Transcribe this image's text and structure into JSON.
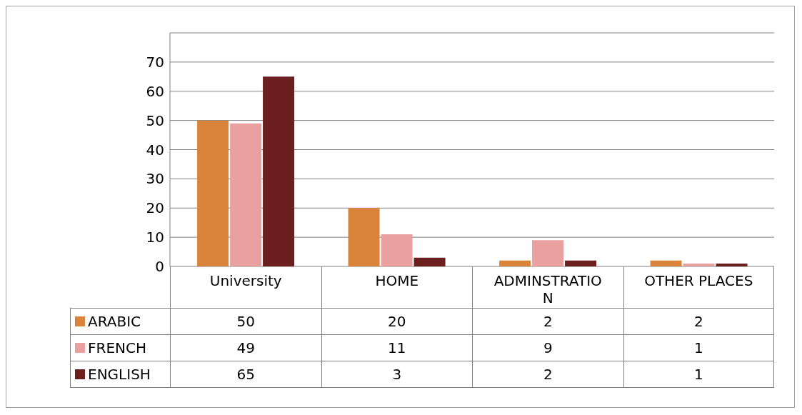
{
  "chart_data": {
    "type": "bar",
    "categories": [
      "University",
      "HOME",
      "ADMINSTRATIO N",
      "OTHER PLACES"
    ],
    "series": [
      {
        "name": "ARABIC",
        "color": "#d9843a",
        "values": [
          50,
          20,
          2,
          2
        ]
      },
      {
        "name": "FRENCH",
        "color": "#e8a0a0",
        "values": [
          49,
          11,
          9,
          1
        ]
      },
      {
        "name": "ENGLISH",
        "color": "#6b1f1f",
        "values": [
          65,
          3,
          2,
          1
        ]
      }
    ],
    "ylim": [
      0,
      80
    ],
    "yticks": [
      0,
      10,
      20,
      30,
      40,
      50,
      60,
      70,
      {
        "value": 80,
        "label": null
      }
    ],
    "grid": "y",
    "legend": "bottom",
    "data_labels": true
  }
}
